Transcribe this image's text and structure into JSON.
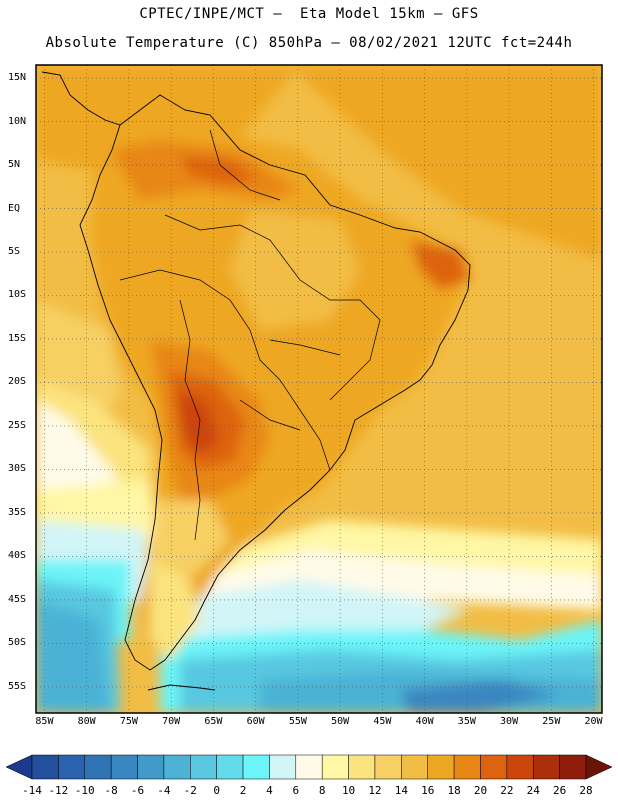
{
  "header": {
    "line1": "CPTEC/INPE/MCT –  Eta Model 15km – GFS",
    "line2": "Absolute Temperature (C) 850hPa – 08/02/2021 12UTC fct=244h"
  },
  "map": {
    "lat_labels": [
      "15N",
      "10N",
      "5N",
      "EQ",
      "5S",
      "10S",
      "15S",
      "20S",
      "25S",
      "30S",
      "35S",
      "40S",
      "45S",
      "50S",
      "55S"
    ],
    "lat_values": [
      15,
      10,
      5,
      0,
      -5,
      -10,
      -15,
      -20,
      -25,
      -30,
      -35,
      -40,
      -45,
      -50,
      -55
    ],
    "lon_labels": [
      "85W",
      "80W",
      "75W",
      "70W",
      "65W",
      "60W",
      "55W",
      "50W",
      "45W",
      "40W",
      "35W",
      "30W",
      "25W",
      "20W"
    ],
    "lon_values": [
      -85,
      -80,
      -75,
      -70,
      -65,
      -60,
      -55,
      -50,
      -45,
      -40,
      -35,
      -30,
      -25,
      -20
    ],
    "lon_range": [
      -86,
      -19
    ],
    "lat_range": [
      -58,
      16.5
    ]
  },
  "colorbar": {
    "labels": [
      "-14",
      "-12",
      "-10",
      "-8",
      "-6",
      "-4",
      "-2",
      "0",
      "2",
      "4",
      "6",
      "8",
      "10",
      "12",
      "14",
      "16",
      "18",
      "20",
      "22",
      "24",
      "26",
      "28"
    ],
    "colors": [
      "#1c3a8c",
      "#234f9e",
      "#2a63ad",
      "#3174b6",
      "#3a86c0",
      "#429ac8",
      "#4cb2d6",
      "#59c8e0",
      "#62dceb",
      "#6cf4f8",
      "#d2f5f8",
      "#fffbe8",
      "#fff7a5",
      "#fbe37e",
      "#f6d064",
      "#f2bd45",
      "#eea722",
      "#e88716",
      "#dd6310",
      "#cc450c",
      "#ad2e0b",
      "#8e1d0b",
      "#6b1408"
    ],
    "unit": "C"
  }
}
